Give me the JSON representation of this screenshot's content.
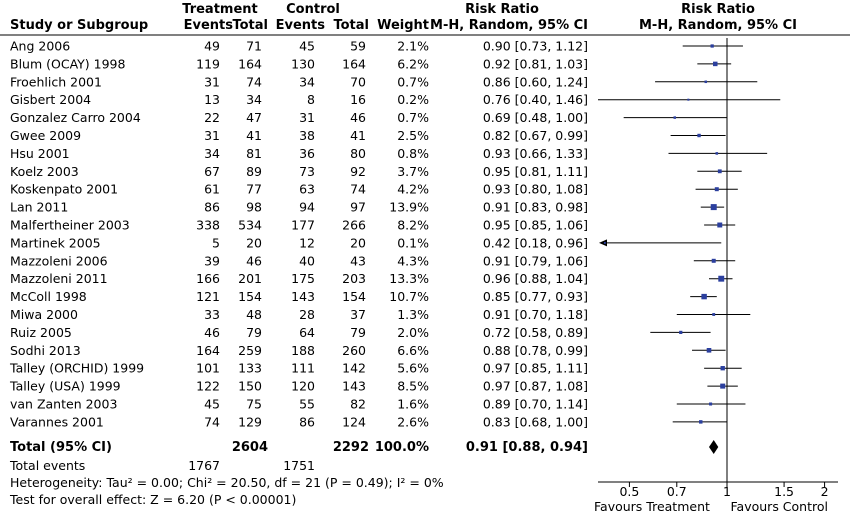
{
  "chart_data": {
    "type": "forest",
    "x_scale": "log",
    "xlim": [
      0.4,
      2.2
    ],
    "x_ticks": [
      {
        "value": 0.5,
        "label": "0.5"
      },
      {
        "value": 0.7,
        "label": "0.7"
      },
      {
        "value": 1,
        "label": "1"
      },
      {
        "value": 1.5,
        "label": "1.5"
      },
      {
        "value": 2,
        "label": "2"
      }
    ],
    "headers": {
      "group_treatment": "Treatment",
      "group_control": "Control",
      "group_risk_ratio_text": "Risk Ratio",
      "group_risk_ratio_plot": "Risk Ratio",
      "study": "Study or Subgroup",
      "events_t": "Events",
      "total_t": "Total",
      "events_c": "Events",
      "total_c": "Total",
      "weight": "Weight",
      "method_text": "M-H, Random, 95% CI",
      "method_plot": "M-H, Random, 95% CI"
    },
    "studies": [
      {
        "name": "Ang 2006",
        "events_t": 49,
        "total_t": 71,
        "events_c": 45,
        "total_c": 59,
        "weight": "2.1%",
        "rr_text": "0.90 [0.73, 1.12]",
        "rr": 0.9,
        "lo": 0.73,
        "hi": 1.12,
        "w": 2.1
      },
      {
        "name": "Blum (OCAY) 1998",
        "events_t": 119,
        "total_t": 164,
        "events_c": 130,
        "total_c": 164,
        "weight": "6.2%",
        "rr_text": "0.92 [0.81, 1.03]",
        "rr": 0.92,
        "lo": 0.81,
        "hi": 1.03,
        "w": 6.2
      },
      {
        "name": "Froehlich 2001",
        "events_t": 31,
        "total_t": 74,
        "events_c": 34,
        "total_c": 70,
        "weight": "0.7%",
        "rr_text": "0.86 [0.60, 1.24]",
        "rr": 0.86,
        "lo": 0.6,
        "hi": 1.24,
        "w": 0.7
      },
      {
        "name": "Gisbert 2004",
        "events_t": 13,
        "total_t": 34,
        "events_c": 8,
        "total_c": 16,
        "weight": "0.2%",
        "rr_text": "0.76 [0.40, 1.46]",
        "rr": 0.76,
        "lo": 0.4,
        "hi": 1.46,
        "w": 0.2
      },
      {
        "name": "Gonzalez Carro 2004",
        "events_t": 22,
        "total_t": 47,
        "events_c": 31,
        "total_c": 46,
        "weight": "0.7%",
        "rr_text": "0.69 [0.48, 1.00]",
        "rr": 0.69,
        "lo": 0.48,
        "hi": 1.0,
        "w": 0.7
      },
      {
        "name": "Gwee 2009",
        "events_t": 31,
        "total_t": 41,
        "events_c": 38,
        "total_c": 41,
        "weight": "2.5%",
        "rr_text": "0.82 [0.67, 0.99]",
        "rr": 0.82,
        "lo": 0.67,
        "hi": 0.99,
        "w": 2.5
      },
      {
        "name": "Hsu 2001",
        "events_t": 34,
        "total_t": 81,
        "events_c": 36,
        "total_c": 80,
        "weight": "0.8%",
        "rr_text": "0.93 [0.66, 1.33]",
        "rr": 0.93,
        "lo": 0.66,
        "hi": 1.33,
        "w": 0.8
      },
      {
        "name": "Koelz 2003",
        "events_t": 67,
        "total_t": 89,
        "events_c": 73,
        "total_c": 92,
        "weight": "3.7%",
        "rr_text": "0.95 [0.81, 1.11]",
        "rr": 0.95,
        "lo": 0.81,
        "hi": 1.11,
        "w": 3.7
      },
      {
        "name": "Koskenpato 2001",
        "events_t": 61,
        "total_t": 77,
        "events_c": 63,
        "total_c": 74,
        "weight": "4.2%",
        "rr_text": "0.93 [0.80, 1.08]",
        "rr": 0.93,
        "lo": 0.8,
        "hi": 1.08,
        "w": 4.2
      },
      {
        "name": "Lan 2011",
        "events_t": 86,
        "total_t": 98,
        "events_c": 94,
        "total_c": 97,
        "weight": "13.9%",
        "rr_text": "0.91 [0.83, 0.98]",
        "rr": 0.91,
        "lo": 0.83,
        "hi": 0.98,
        "w": 13.9
      },
      {
        "name": "Malfertheiner 2003",
        "events_t": 338,
        "total_t": 534,
        "events_c": 177,
        "total_c": 266,
        "weight": "8.2%",
        "rr_text": "0.95 [0.85, 1.06]",
        "rr": 0.95,
        "lo": 0.85,
        "hi": 1.06,
        "w": 8.2
      },
      {
        "name": "Martinek 2005",
        "events_t": 5,
        "total_t": 20,
        "events_c": 12,
        "total_c": 20,
        "weight": "0.1%",
        "rr_text": "0.42 [0.18, 0.96]",
        "rr": 0.42,
        "lo": 0.18,
        "hi": 0.96,
        "w": 0.1
      },
      {
        "name": "Mazzoleni 2006",
        "events_t": 39,
        "total_t": 46,
        "events_c": 40,
        "total_c": 43,
        "weight": "4.3%",
        "rr_text": "0.91 [0.79, 1.06]",
        "rr": 0.91,
        "lo": 0.79,
        "hi": 1.06,
        "w": 4.3
      },
      {
        "name": "Mazzoleni 2011",
        "events_t": 166,
        "total_t": 201,
        "events_c": 175,
        "total_c": 203,
        "weight": "13.3%",
        "rr_text": "0.96 [0.88, 1.04]",
        "rr": 0.96,
        "lo": 0.88,
        "hi": 1.04,
        "w": 13.3
      },
      {
        "name": "McColl 1998",
        "events_t": 121,
        "total_t": 154,
        "events_c": 143,
        "total_c": 154,
        "weight": "10.7%",
        "rr_text": "0.85 [0.77, 0.93]",
        "rr": 0.85,
        "lo": 0.77,
        "hi": 0.93,
        "w": 10.7
      },
      {
        "name": "Miwa 2000",
        "events_t": 33,
        "total_t": 48,
        "events_c": 28,
        "total_c": 37,
        "weight": "1.3%",
        "rr_text": "0.91 [0.70, 1.18]",
        "rr": 0.91,
        "lo": 0.7,
        "hi": 1.18,
        "w": 1.3
      },
      {
        "name": "Ruiz 2005",
        "events_t": 46,
        "total_t": 79,
        "events_c": 64,
        "total_c": 79,
        "weight": "2.0%",
        "rr_text": "0.72 [0.58, 0.89]",
        "rr": 0.72,
        "lo": 0.58,
        "hi": 0.89,
        "w": 2.0
      },
      {
        "name": "Sodhi 2013",
        "events_t": 164,
        "total_t": 259,
        "events_c": 188,
        "total_c": 260,
        "weight": "6.6%",
        "rr_text": "0.88 [0.78, 0.99]",
        "rr": 0.88,
        "lo": 0.78,
        "hi": 0.99,
        "w": 6.6
      },
      {
        "name": "Talley (ORCHID) 1999",
        "events_t": 101,
        "total_t": 133,
        "events_c": 111,
        "total_c": 142,
        "weight": "5.6%",
        "rr_text": "0.97 [0.85, 1.11]",
        "rr": 0.97,
        "lo": 0.85,
        "hi": 1.11,
        "w": 5.6
      },
      {
        "name": "Talley (USA) 1999",
        "events_t": 122,
        "total_t": 150,
        "events_c": 120,
        "total_c": 143,
        "weight": "8.5%",
        "rr_text": "0.97 [0.87, 1.08]",
        "rr": 0.97,
        "lo": 0.87,
        "hi": 1.08,
        "w": 8.5
      },
      {
        "name": "van Zanten 2003",
        "events_t": 45,
        "total_t": 75,
        "events_c": 55,
        "total_c": 82,
        "weight": "1.6%",
        "rr_text": "0.89 [0.70, 1.14]",
        "rr": 0.89,
        "lo": 0.7,
        "hi": 1.14,
        "w": 1.6
      },
      {
        "name": "Varannes 2001",
        "events_t": 74,
        "total_t": 129,
        "events_c": 86,
        "total_c": 124,
        "weight": "2.6%",
        "rr_text": "0.83 [0.68, 1.00]",
        "rr": 0.83,
        "lo": 0.68,
        "hi": 1.0,
        "w": 2.6
      }
    ],
    "total": {
      "label": "Total (95% CI)",
      "total_t": 2604,
      "total_c": 2292,
      "weight": "100.0%",
      "rr_text": "0.91 [0.88, 0.94]",
      "rr": 0.91,
      "lo": 0.88,
      "hi": 0.94
    },
    "total_events": {
      "label": "Total events",
      "events_t": 1767,
      "events_c": 1751
    },
    "heterogeneity": "Heterogeneity: Tau² = 0.00; Chi² = 20.50, df = 21 (P = 0.49); I² = 0%",
    "overall_effect": "Test for overall effect: Z = 6.20 (P < 0.00001)",
    "favours_left": "Favours Treatment",
    "favours_right": "Favours Control",
    "colors": {
      "square": "#2b3f9e",
      "lines": "#000000",
      "diamond": "#000000"
    }
  }
}
